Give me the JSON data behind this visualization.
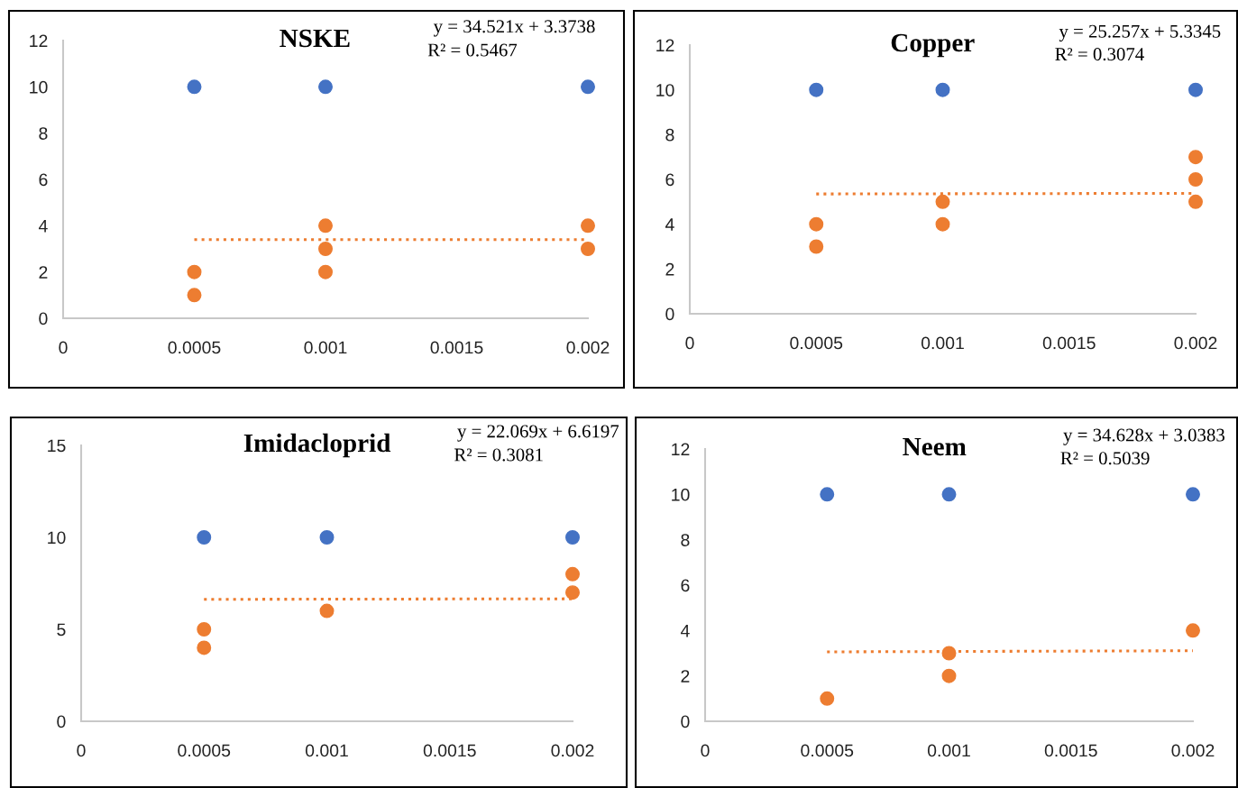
{
  "chart_data": [
    {
      "type": "scatter",
      "title": "NSKE",
      "xlim": [
        0,
        0.002
      ],
      "xticks": [
        0,
        0.0005,
        0.001,
        0.0015,
        0.002
      ],
      "ylim": [
        0,
        12
      ],
      "yticks": [
        0,
        2,
        4,
        6,
        8,
        10,
        12
      ],
      "grid": false,
      "annotations": [
        "y = 34.521x + 3.3738",
        "R² = 0.5467"
      ],
      "series": [
        {
          "color": "#4472c4",
          "marker": "circle",
          "x": [
            0.0005,
            0.001,
            0.002
          ],
          "values": [
            10,
            10,
            10
          ]
        },
        {
          "color": "#ed7d31",
          "marker": "circle",
          "x": [
            0.0005,
            0.0005,
            0.001,
            0.001,
            0.001,
            0.002,
            0.002
          ],
          "values": [
            2,
            1,
            4,
            3,
            2,
            4,
            3
          ]
        },
        {
          "type": "line",
          "line_style": "dotted",
          "marker": "none",
          "color": "#ed7d31",
          "x": [
            0.0005,
            0.002
          ],
          "values": [
            3.4,
            3.4
          ]
        }
      ]
    },
    {
      "type": "scatter",
      "title": "Copper",
      "xlim": [
        0,
        0.002
      ],
      "xticks": [
        0,
        0.0005,
        0.001,
        0.0015,
        0.002
      ],
      "ylim": [
        0,
        12
      ],
      "yticks": [
        0,
        2,
        4,
        6,
        8,
        10,
        12
      ],
      "grid": false,
      "annotations": [
        "y = 25.257x + 5.3345",
        "R² = 0.3074"
      ],
      "series": [
        {
          "color": "#4472c4",
          "marker": "circle",
          "x": [
            0.0005,
            0.001,
            0.002
          ],
          "values": [
            10,
            10,
            10
          ]
        },
        {
          "color": "#ed7d31",
          "marker": "circle",
          "x": [
            0.0005,
            0.0005,
            0.001,
            0.001,
            0.002,
            0.002,
            0.002
          ],
          "values": [
            4,
            3,
            5,
            4,
            7,
            6,
            5
          ]
        },
        {
          "type": "line",
          "line_style": "dotted",
          "marker": "none",
          "color": "#ed7d31",
          "x": [
            0.0005,
            0.002
          ],
          "values": [
            5.35,
            5.38
          ]
        }
      ]
    },
    {
      "type": "scatter",
      "title": "Imidacloprid",
      "xlim": [
        0,
        0.002
      ],
      "xticks": [
        0,
        0.0005,
        0.001,
        0.0015,
        0.002
      ],
      "ylim": [
        0,
        15
      ],
      "yticks": [
        0,
        5,
        10,
        15
      ],
      "grid": false,
      "annotations": [
        "y = 22.069x + 6.6197",
        "R² = 0.3081"
      ],
      "series": [
        {
          "color": "#4472c4",
          "marker": "circle",
          "x": [
            0.0005,
            0.001,
            0.002
          ],
          "values": [
            10,
            10,
            10
          ]
        },
        {
          "color": "#ed7d31",
          "marker": "circle",
          "x": [
            0.0005,
            0.0005,
            0.001,
            0.002,
            0.002
          ],
          "values": [
            5,
            4,
            6,
            8,
            7
          ]
        },
        {
          "type": "line",
          "line_style": "dotted",
          "marker": "none",
          "color": "#ed7d31",
          "x": [
            0.0005,
            0.002
          ],
          "values": [
            6.63,
            6.66
          ]
        }
      ]
    },
    {
      "type": "scatter",
      "title": "Neem",
      "xlim": [
        0,
        0.002
      ],
      "xticks": [
        0,
        0.0005,
        0.001,
        0.0015,
        0.002
      ],
      "ylim": [
        0,
        12
      ],
      "yticks": [
        0,
        2,
        4,
        6,
        8,
        10,
        12
      ],
      "grid": false,
      "annotations": [
        "y = 34.628x + 3.0383",
        "R² = 0.5039"
      ],
      "series": [
        {
          "color": "#4472c4",
          "marker": "circle",
          "x": [
            0.0005,
            0.001,
            0.002
          ],
          "values": [
            10,
            10,
            10
          ]
        },
        {
          "color": "#ed7d31",
          "marker": "circle",
          "x": [
            0.0005,
            0.001,
            0.001,
            0.002
          ],
          "values": [
            1,
            3,
            2,
            4
          ]
        },
        {
          "type": "line",
          "line_style": "dotted",
          "marker": "none",
          "color": "#ed7d31",
          "x": [
            0.0005,
            0.002
          ],
          "values": [
            3.06,
            3.11
          ]
        }
      ]
    }
  ]
}
